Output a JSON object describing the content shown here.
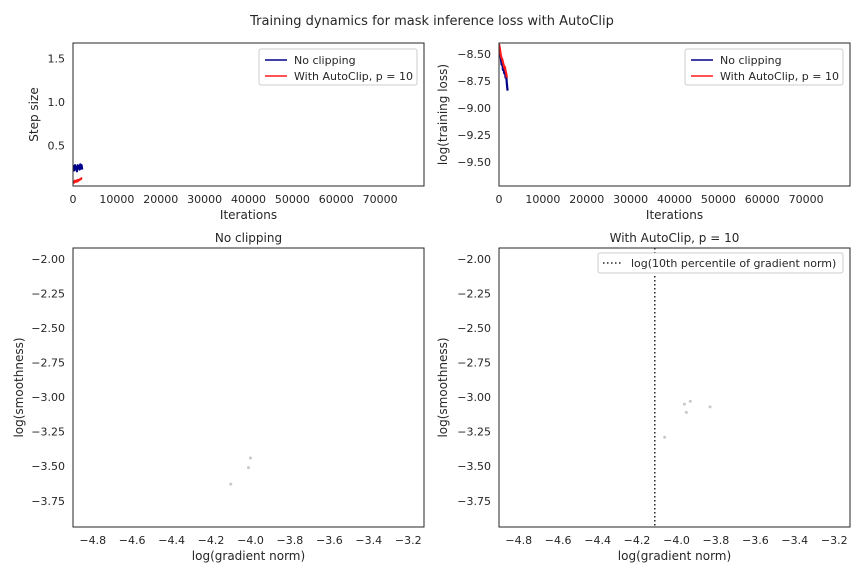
{
  "suptitle": "Training dynamics for mask inference loss with AutoClip",
  "colors": {
    "no_clip": "#00008b",
    "autoclip": "#ff1a1a",
    "scatter": "#c8c8c8",
    "threshold": "#222222",
    "axes": "#262626"
  },
  "chart_data": [
    {
      "type": "line",
      "title": "",
      "xlabel": "Iterations",
      "ylabel": "Step size",
      "xlim": [
        0,
        80000
      ],
      "ylim": [
        0.03,
        1.68
      ],
      "xticks": [
        0,
        10000,
        20000,
        30000,
        40000,
        50000,
        60000,
        70000
      ],
      "yticks": [
        0.5,
        1.0,
        1.5
      ],
      "xtick_labels": [
        "0",
        "10000",
        "20000",
        "30000",
        "40000",
        "50000",
        "60000",
        "70000"
      ],
      "ytick_labels": [
        "0.5",
        "1.0",
        "1.5"
      ],
      "grid": false,
      "legend": {
        "position": "top-right",
        "entries": [
          "No clipping",
          "With AutoClip, p = 10"
        ]
      },
      "series": [
        {
          "name": "No clipping",
          "color_key": "no_clip",
          "x": [
            0,
            150,
            300,
            450,
            600,
            750,
            900,
            1050,
            1200,
            1350,
            1500,
            1650,
            1800,
            1950,
            2100
          ],
          "y": [
            0.22,
            0.26,
            0.21,
            0.27,
            0.23,
            0.25,
            0.2,
            0.27,
            0.24,
            0.26,
            0.22,
            0.28,
            0.23,
            0.27,
            0.22
          ]
        },
        {
          "name": "With AutoClip, p = 10",
          "color_key": "autoclip",
          "x": [
            0,
            150,
            300,
            450,
            600,
            750,
            900,
            1050,
            1200,
            1350,
            1500,
            1650,
            1800,
            1950,
            2100
          ],
          "y": [
            0.07,
            0.08,
            0.07,
            0.09,
            0.08,
            0.09,
            0.08,
            0.1,
            0.09,
            0.1,
            0.1,
            0.11,
            0.11,
            0.12,
            0.12
          ]
        }
      ]
    },
    {
      "type": "line",
      "title": "",
      "xlabel": "Iterations",
      "ylabel": "log(training loss)",
      "xlim": [
        0,
        80000
      ],
      "ylim": [
        -9.72,
        -8.4
      ],
      "xticks": [
        0,
        10000,
        20000,
        30000,
        40000,
        50000,
        60000,
        70000
      ],
      "yticks": [
        -8.5,
        -8.75,
        -9.0,
        -9.25,
        -9.5
      ],
      "xtick_labels": [
        "0",
        "10000",
        "20000",
        "30000",
        "40000",
        "50000",
        "60000",
        "70000"
      ],
      "ytick_labels": [
        "−8.50",
        "−8.75",
        "−9.00",
        "−9.25",
        "−9.50"
      ],
      "grid": false,
      "legend": {
        "position": "top-right",
        "entries": [
          "No clipping",
          "With AutoClip, p = 10"
        ]
      },
      "series": [
        {
          "name": "No clipping",
          "color_key": "no_clip",
          "x": [
            0,
            150,
            300,
            450,
            600,
            750,
            900,
            1050,
            1200,
            1350,
            1500,
            1650,
            1800,
            1950
          ],
          "y": [
            -8.42,
            -8.45,
            -8.5,
            -8.55,
            -8.6,
            -8.57,
            -8.65,
            -8.62,
            -8.68,
            -8.66,
            -8.72,
            -8.7,
            -8.78,
            -8.84
          ]
        },
        {
          "name": "With AutoClip, p = 10",
          "color_key": "autoclip",
          "x": [
            0,
            150,
            300,
            450,
            600,
            750,
            900,
            1050,
            1200,
            1350,
            1500,
            1650,
            1800
          ],
          "y": [
            -8.41,
            -8.44,
            -8.48,
            -8.52,
            -8.54,
            -8.55,
            -8.58,
            -8.6,
            -8.63,
            -8.62,
            -8.66,
            -8.68,
            -8.72
          ]
        }
      ]
    },
    {
      "type": "scatter",
      "title": "No clipping",
      "xlabel": "log(gradient norm)",
      "ylabel": "log(smoothness)",
      "xlim": [
        -4.9,
        -3.12
      ],
      "ylim": [
        -3.94,
        -1.92
      ],
      "xticks": [
        -4.8,
        -4.6,
        -4.4,
        -4.2,
        -4.0,
        -3.8,
        -3.6,
        -3.4,
        -3.2
      ],
      "yticks": [
        -2.0,
        -2.25,
        -2.5,
        -2.75,
        -3.0,
        -3.25,
        -3.5,
        -3.75
      ],
      "xtick_labels": [
        "−4.8",
        "−4.6",
        "−4.4",
        "−4.2",
        "−4.0",
        "−3.8",
        "−3.6",
        "−3.4",
        "−3.2"
      ],
      "ytick_labels": [
        "−2.00",
        "−2.25",
        "−2.50",
        "−2.75",
        "−3.00",
        "−3.25",
        "−3.50",
        "−3.75"
      ],
      "grid": false,
      "points": [
        {
          "x": -4.1,
          "y": -3.63
        },
        {
          "x": -4.01,
          "y": -3.51
        },
        {
          "x": -4.0,
          "y": -3.44
        }
      ]
    },
    {
      "type": "scatter",
      "title": "With AutoClip, p = 10",
      "xlabel": "log(gradient norm)",
      "ylabel": "log(smoothness)",
      "xlim": [
        -4.9,
        -3.12
      ],
      "ylim": [
        -3.94,
        -1.92
      ],
      "xticks": [
        -4.8,
        -4.6,
        -4.4,
        -4.2,
        -4.0,
        -3.8,
        -3.6,
        -3.4,
        -3.2
      ],
      "yticks": [
        -2.0,
        -2.25,
        -2.5,
        -2.75,
        -3.0,
        -3.25,
        -3.5,
        -3.75
      ],
      "xtick_labels": [
        "−4.8",
        "−4.6",
        "−4.4",
        "−4.2",
        "−4.0",
        "−3.8",
        "−3.6",
        "−3.4",
        "−3.2"
      ],
      "ytick_labels": [
        "−2.00",
        "−2.25",
        "−2.50",
        "−2.75",
        "−3.00",
        "−3.25",
        "−3.50",
        "−3.75"
      ],
      "grid": false,
      "threshold_x": -4.11,
      "legend": {
        "position": "top-right",
        "entries": [
          "log(10th percentile of gradient norm)"
        ]
      },
      "points": [
        {
          "x": -4.06,
          "y": -3.29
        },
        {
          "x": -3.96,
          "y": -3.05
        },
        {
          "x": -3.95,
          "y": -3.11
        },
        {
          "x": -3.93,
          "y": -3.03
        },
        {
          "x": -3.83,
          "y": -3.07
        }
      ]
    }
  ]
}
